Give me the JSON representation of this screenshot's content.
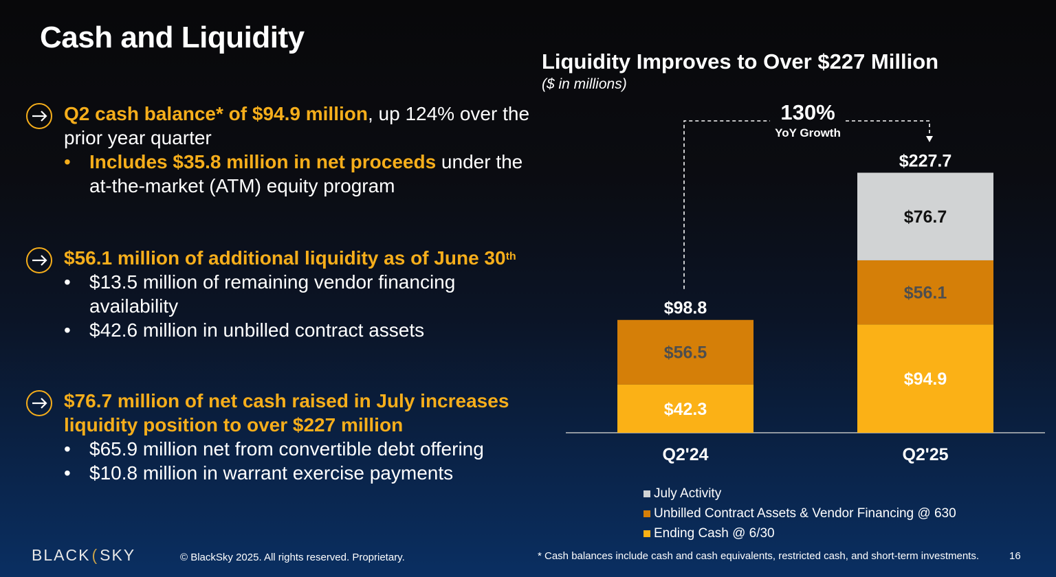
{
  "slide": {
    "title": "Cash and Liquidity"
  },
  "bullets": [
    {
      "icon": "arrow-right-circle-icon",
      "highlight": "Q2 cash balance* of $94.9 million",
      "rest": ", up 124% over the prior year quarter",
      "sub": [
        {
          "highlight": "Includes $35.8 million in net proceeds",
          "rest": " under the at-the-market (ATM) equity program"
        }
      ]
    },
    {
      "icon": "arrow-right-circle-icon",
      "highlight": "$56.1 million of additional liquidity as of June 30",
      "sup": "th",
      "rest": "",
      "sub": [
        {
          "text": "$13.5 million of remaining vendor financing availability"
        },
        {
          "text": "$42.6 million in unbilled contract assets"
        }
      ]
    },
    {
      "icon": "arrow-right-circle-icon",
      "highlight": "$76.7 million of net cash raised in July increases liquidity position to over $227 million",
      "rest": "",
      "sub": [
        {
          "text": "$65.9 million net from convertible debt offering"
        },
        {
          "text": "$10.8 million in warrant exercise payments"
        }
      ]
    }
  ],
  "bullet_glyph": "•",
  "chart_data": {
    "type": "bar",
    "stacked": true,
    "title": "Liquidity Improves to Over $227 Million",
    "subtitle": "($ in millions)",
    "categories": [
      "Q2'24",
      "Q2'25"
    ],
    "series": [
      {
        "name": "Ending Cash @ 6/30",
        "values": [
          42.3,
          94.9
        ],
        "labels": [
          "$42.3",
          "$94.9"
        ],
        "color": "#fbb116",
        "label_color": "#ffffff"
      },
      {
        "name": "Unbilled Contract Assets & Vendor Financing @ 630",
        "values": [
          56.5,
          56.1
        ],
        "labels": [
          "$56.5",
          "$56.1"
        ],
        "color": "#d57f08",
        "label_color": "#4e4e4e"
      },
      {
        "name": "July Activity",
        "values": [
          0,
          76.7
        ],
        "labels": [
          "",
          "$76.7"
        ],
        "color": "#d1d3d4",
        "label_color": "#111111"
      }
    ],
    "totals": [
      "$98.8",
      "$227.7"
    ],
    "legend_order": [
      "July Activity",
      "Unbilled Contract Assets & Vendor Financing @ 630",
      "Ending Cash @ 6/30"
    ],
    "growth_annotation": {
      "value": "130%",
      "label": "YoY Growth"
    },
    "ylim": [
      0,
      240
    ],
    "grid": false,
    "legend_position": "bottom-right"
  },
  "footer": {
    "logo_left": "BLACK",
    "logo_slash": "(",
    "logo_right": "SKY",
    "copyright": "© BlackSky 2025. All rights reserved. Proprietary.",
    "footnote": "* Cash balances include cash and cash equivalents, restricted cash, and short-term investments.",
    "page_number": "16"
  }
}
